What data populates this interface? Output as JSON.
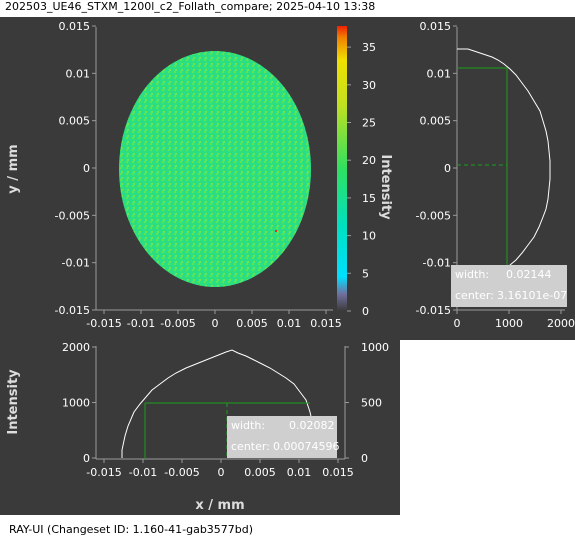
{
  "window": {
    "title": "202503_UE46_STXM_1200l_c2_Follath_compare; 2025-04-10 13:38"
  },
  "status_bar": {
    "text": "RAY-UI (Changeset ID: 1.160-41-gab3577bd)"
  },
  "main_plot": {
    "ylabel": "y / mm",
    "y_ticks": [
      "0.015",
      "0.01",
      "0.005",
      "0",
      "-0.005",
      "-0.01",
      "-0.015"
    ],
    "x_ticks": [
      "-0.015",
      "-0.01",
      "-0.005",
      "0",
      "0.005",
      "0.01",
      "0.015"
    ],
    "colorbar_label": "Intensity",
    "colorbar_ticks": [
      "35",
      "30",
      "25",
      "20",
      "15",
      "10",
      "5",
      "0"
    ],
    "colors": {
      "background": "#3a3a3a",
      "spot_fill": "#2ee07c"
    }
  },
  "right_plot": {
    "y_ticks": [
      "0.015",
      "0.01",
      "0.005",
      "0",
      "-0.005",
      "-0.01",
      "-0.015"
    ],
    "x_ticks": [
      "0",
      "1000",
      "2000"
    ],
    "info": {
      "width_label": "width:",
      "width_value": "0.02144",
      "center_label": "center:",
      "center_value": "3.16101e-07"
    }
  },
  "bottom_plot": {
    "ylabel": "Intensity",
    "xlabel": "x / mm",
    "y_ticks_left": [
      "2000",
      "1000",
      "0"
    ],
    "y_ticks_right": [
      "1000",
      "500",
      "0"
    ],
    "x_ticks": [
      "-0.015",
      "-0.01",
      "-0.005",
      "0",
      "0.005",
      "0.01",
      "0.015"
    ],
    "info": {
      "width_label": "width:",
      "width_value": "0.02082",
      "center_label": "center:",
      "center_value": "0.00074596"
    }
  }
}
